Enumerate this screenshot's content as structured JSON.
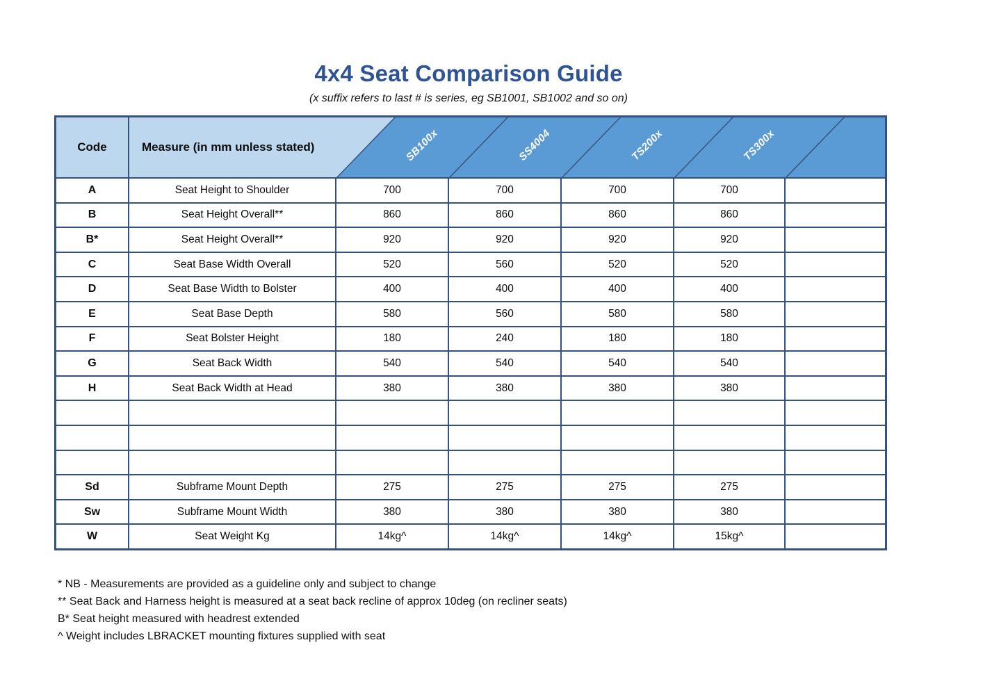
{
  "title": "4x4 Seat Comparison Guide",
  "subtitle": "(x suffix refers to last # is series, eg SB1001, SB1002 and so on)",
  "colors": {
    "title_blue": "#2e5496",
    "header_blue": "#5b9bd5",
    "header_light_blue": "#bdd7ee",
    "grid_border_navy": "#35517e"
  },
  "table": {
    "code_header": "Code",
    "measure_header": "Measure (in mm unless stated)",
    "series_headers": [
      "SB100x",
      "SS4004",
      "TS200x",
      "TS300x",
      ""
    ],
    "rows": [
      {
        "code": "A",
        "measure": "Seat Height to Shoulder",
        "values": [
          "700",
          "700",
          "700",
          "700"
        ]
      },
      {
        "code": "B",
        "measure": "Seat Height Overall**",
        "values": [
          "860",
          "860",
          "860",
          "860"
        ]
      },
      {
        "code": "B*",
        "measure": "Seat Height Overall**",
        "values": [
          "920",
          "920",
          "920",
          "920"
        ]
      },
      {
        "code": "C",
        "measure": "Seat Base Width Overall",
        "values": [
          "520",
          "560",
          "520",
          "520"
        ]
      },
      {
        "code": "D",
        "measure": "Seat Base Width to Bolster",
        "values": [
          "400",
          "400",
          "400",
          "400"
        ]
      },
      {
        "code": "E",
        "measure": "Seat Base Depth",
        "values": [
          "580",
          "560",
          "580",
          "580"
        ]
      },
      {
        "code": "F",
        "measure": "Seat Bolster Height",
        "values": [
          "180",
          "240",
          "180",
          "180"
        ]
      },
      {
        "code": "G",
        "measure": "Seat Back Width",
        "values": [
          "540",
          "540",
          "540",
          "540"
        ]
      },
      {
        "code": "H",
        "measure": "Seat Back Width at Head",
        "values": [
          "380",
          "380",
          "380",
          "380"
        ]
      },
      {
        "code": "",
        "measure": "",
        "values": [
          "",
          "",
          "",
          ""
        ]
      },
      {
        "code": "",
        "measure": "",
        "values": [
          "",
          "",
          "",
          ""
        ]
      },
      {
        "code": "",
        "measure": "",
        "values": [
          "",
          "",
          "",
          ""
        ]
      },
      {
        "code": "Sd",
        "measure": "Subframe Mount Depth",
        "values": [
          "275",
          "275",
          "275",
          "275"
        ]
      },
      {
        "code": "Sw",
        "measure": "Subframe Mount Width",
        "values": [
          "380",
          "380",
          "380",
          "380"
        ]
      },
      {
        "code": "W",
        "measure": "Seat Weight Kg",
        "values": [
          "14kg^",
          "14kg^",
          "14kg^",
          "15kg^"
        ]
      }
    ]
  },
  "footnotes": [
    "* NB - Measurements are provided as a guideline only and subject to change",
    "** Seat Back and Harness height is measured at a seat back recline of approx 10deg (on recliner seats)",
    "B* Seat height measured with headrest extended",
    "^ Weight includes LBRACKET mounting fixtures supplied with seat"
  ]
}
